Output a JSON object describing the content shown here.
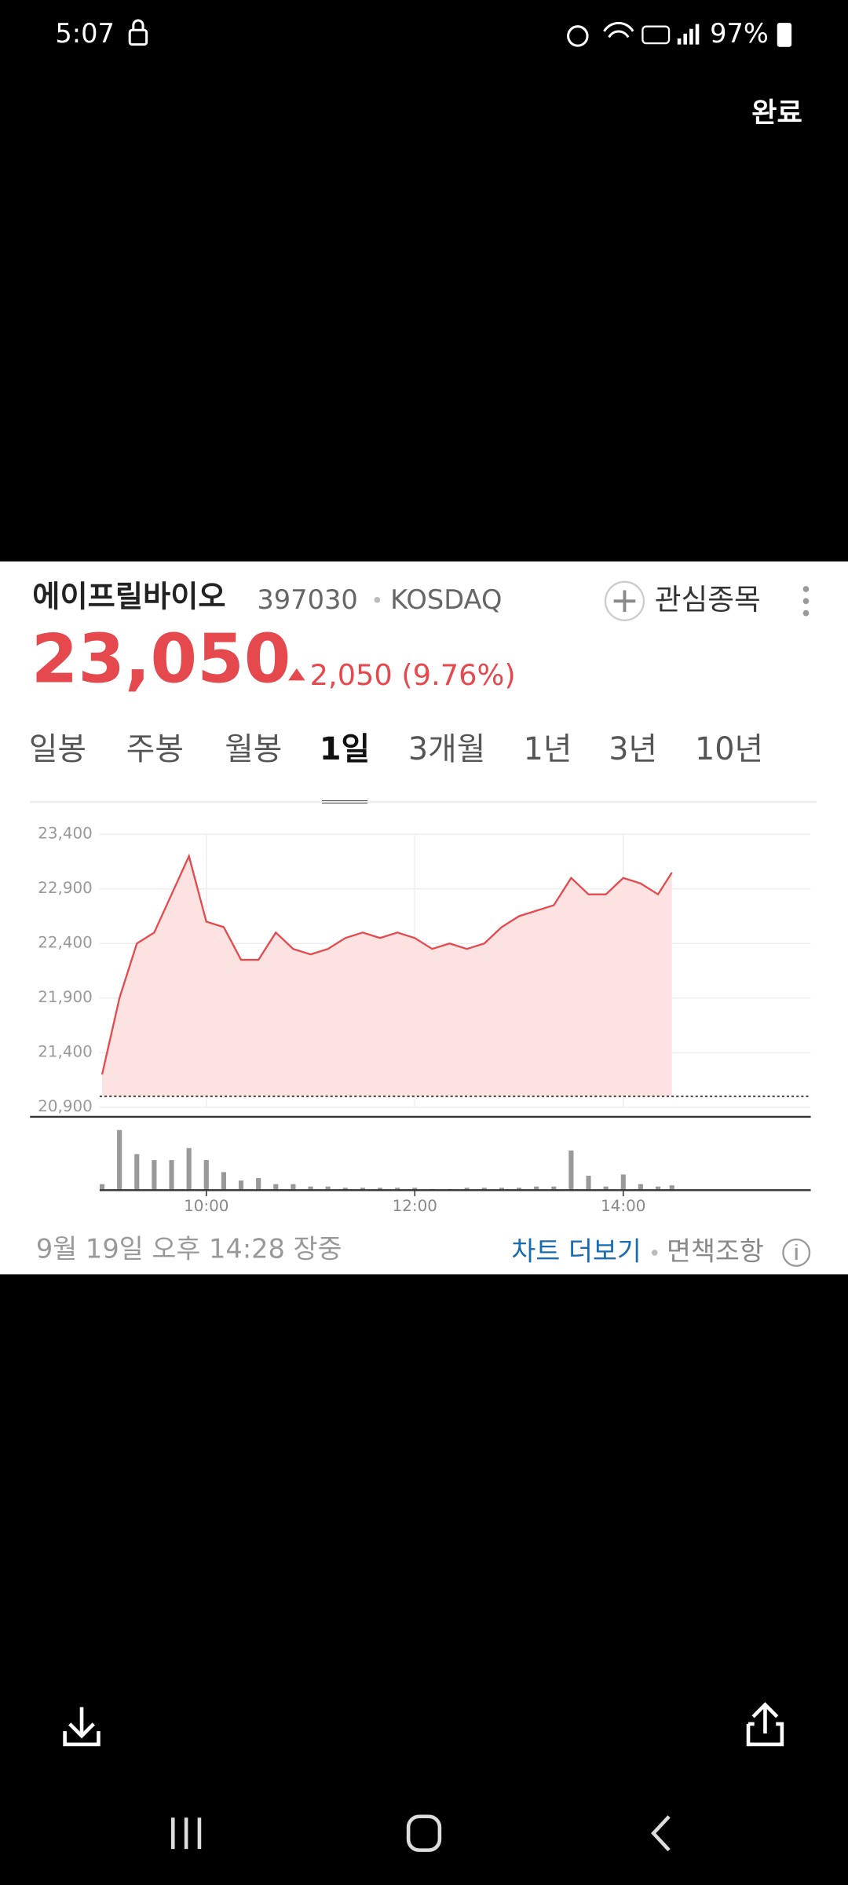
{
  "status_bar": {
    "time": "5:07",
    "battery": "97%"
  },
  "header": {
    "done": "완료"
  },
  "stock": {
    "name": "에이프릴바이오",
    "code": "397030",
    "market": "KOSDAQ",
    "watchlist": "관심종목",
    "price": "23,050",
    "change": "2,050 (9.76%)"
  },
  "tabs": {
    "items": [
      "일봉",
      "주봉",
      "월봉",
      "1일",
      "3개월",
      "1년",
      "3년",
      "10년"
    ],
    "selected": "1일"
  },
  "chart_data": {
    "type": "line",
    "x": [
      "09:00",
      "09:10",
      "09:20",
      "09:30",
      "09:40",
      "09:50",
      "10:00",
      "10:10",
      "10:20",
      "10:30",
      "10:40",
      "10:50",
      "11:00",
      "11:10",
      "11:20",
      "11:30",
      "11:40",
      "11:50",
      "12:00",
      "12:10",
      "12:20",
      "12:30",
      "12:40",
      "12:50",
      "13:00",
      "13:10",
      "13:20",
      "13:30",
      "13:40",
      "13:50",
      "14:00",
      "14:10",
      "14:20",
      "14:28"
    ],
    "values": [
      21200,
      21900,
      22400,
      22500,
      22850,
      23200,
      22600,
      22550,
      22250,
      22250,
      22500,
      22350,
      22300,
      22350,
      22450,
      22500,
      22450,
      22500,
      22450,
      22350,
      22400,
      22350,
      22400,
      22550,
      22650,
      22700,
      22750,
      23000,
      22850,
      22850,
      23000,
      22950,
      22850,
      23050
    ],
    "volume": [
      5,
      50,
      30,
      25,
      25,
      35,
      25,
      15,
      8,
      10,
      5,
      5,
      3,
      3,
      2,
      2,
      2,
      2,
      2,
      1,
      1,
      2,
      2,
      2,
      2,
      3,
      3,
      33,
      12,
      3,
      13,
      5,
      3,
      4
    ],
    "volume_ylim": [
      0,
      55
    ],
    "color": "#e5484d",
    "fill_color": "#fde2e2",
    "volume_color": "#999999",
    "reference_line": 21000,
    "xlim": [
      "09:00",
      "15:50"
    ],
    "xticks": [
      "10:00",
      "12:00",
      "14:00"
    ],
    "ylim": [
      20900,
      23400
    ],
    "yticks": [
      {
        "value": 20900,
        "label": "20,900"
      },
      {
        "value": 21400,
        "label": "21,400"
      },
      {
        "value": 21900,
        "label": "21,900"
      },
      {
        "value": 22400,
        "label": "22,400"
      },
      {
        "value": 22900,
        "label": "22,900"
      },
      {
        "value": 23400,
        "label": "23,400"
      }
    ],
    "grid": true
  },
  "footer": {
    "timestamp": "9월 19일 오후 14:28 장중",
    "more_chart": "차트 더보기",
    "disclaimer": "면책조항"
  }
}
